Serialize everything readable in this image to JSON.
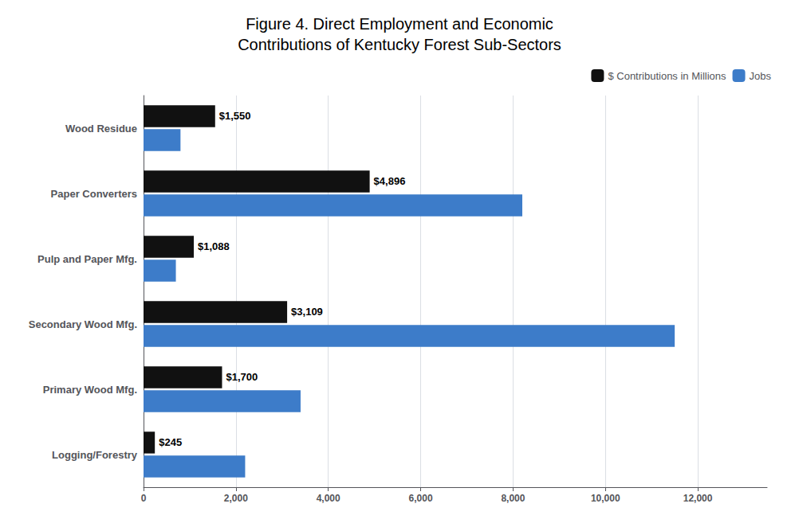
{
  "chart_data": {
    "type": "bar",
    "orientation": "horizontal",
    "title": "Figure 4. Direct Employment and Economic\nContributions of Kentucky Forest Sub-Sectors",
    "categories": [
      "Wood Residue",
      "Paper Converters",
      "Pulp and Paper Mfg.",
      "Secondary Wood Mfg.",
      "Primary Wood Mfg.",
      "Logging/Forestry"
    ],
    "series": [
      {
        "name": "$ Contributions in Millions",
        "color": "#111111",
        "values": [
          1550,
          4896,
          1088,
          3109,
          1700,
          245
        ],
        "value_labels": [
          "$1,550",
          "$4,896",
          "$1,088",
          "$3,109",
          "$1,700",
          "$245"
        ],
        "data_labels": true
      },
      {
        "name": "Jobs",
        "color": "#3d7cc9",
        "values": [
          800,
          8200,
          700,
          11500,
          3400,
          2200
        ]
      }
    ],
    "xlim": [
      0,
      13500
    ],
    "xticks": [
      0,
      {
        "value": 2000,
        "label": "2,000"
      },
      {
        "value": 4000,
        "label": "4,000"
      },
      {
        "value": 6000,
        "label": "6,000"
      },
      {
        "value": 8000,
        "label": "8,000"
      },
      {
        "value": 10000,
        "label": "10,000"
      },
      {
        "value": 12000,
        "label": "12,000"
      }
    ],
    "grid": true,
    "legend": "upper right"
  }
}
